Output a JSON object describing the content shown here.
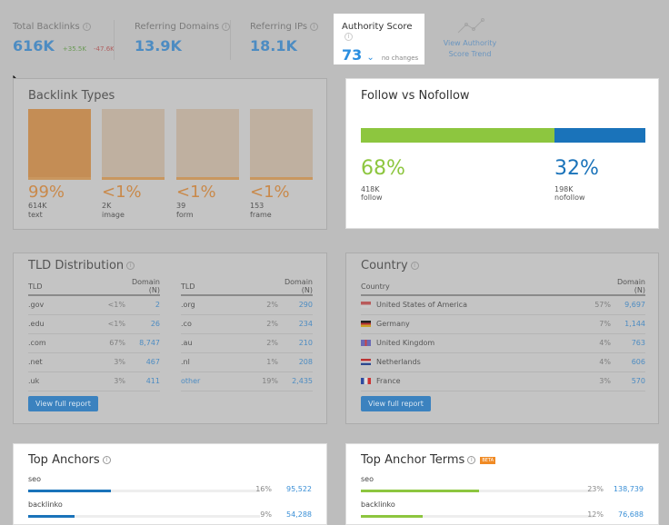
{
  "stats": {
    "total_backlinks": {
      "label": "Total Backlinks",
      "value": "616K",
      "up": "+35.5K",
      "down": "-47.6K"
    },
    "referring_domains": {
      "label": "Referring Domains",
      "value": "13.9K"
    },
    "referring_ips": {
      "label": "Referring IPs",
      "value": "18.1K"
    },
    "authority_score": {
      "label": "Authority Score",
      "value": "73",
      "change": "no changes"
    },
    "trend_link": "View Authority Score Trend"
  },
  "backlink_types": {
    "title": "Backlink Types",
    "items": [
      {
        "pct": "99%",
        "count": "614K",
        "type": "text"
      },
      {
        "pct": "<1%",
        "count": "2K",
        "type": "image"
      },
      {
        "pct": "<1%",
        "count": "39",
        "type": "form"
      },
      {
        "pct": "<1%",
        "count": "153",
        "type": "frame"
      }
    ]
  },
  "follow": {
    "title": "Follow vs Nofollow",
    "follow_pct": "68%",
    "follow_count": "418K",
    "follow_label": "follow",
    "nofollow_pct": "32%",
    "nofollow_count": "198K",
    "nofollow_label": "nofollow",
    "follow_fraction": 0.68,
    "colors": {
      "follow": "#8dc63f",
      "nofollow": "#1a73ba"
    }
  },
  "tld": {
    "title": "TLD Distribution",
    "col_tld": "TLD",
    "col_domain": "Domain (N)",
    "left": [
      {
        "tld": ".gov",
        "pct": "<1%",
        "n": "2"
      },
      {
        "tld": ".edu",
        "pct": "<1%",
        "n": "26"
      },
      {
        "tld": ".com",
        "pct": "67%",
        "n": "8,747"
      },
      {
        "tld": ".net",
        "pct": "3%",
        "n": "467"
      },
      {
        "tld": ".uk",
        "pct": "3%",
        "n": "411"
      }
    ],
    "right": [
      {
        "tld": ".org",
        "pct": "2%",
        "n": "290"
      },
      {
        "tld": ".co",
        "pct": "2%",
        "n": "234"
      },
      {
        "tld": ".au",
        "pct": "2%",
        "n": "210"
      },
      {
        "tld": ".nl",
        "pct": "1%",
        "n": "208"
      },
      {
        "tld": "other",
        "pct": "19%",
        "n": "2,435"
      }
    ],
    "button": "View full report"
  },
  "country": {
    "title": "Country",
    "col_country": "Country",
    "col_domain": "Domain (N)",
    "rows": [
      {
        "name": "United States of America",
        "pct": "57%",
        "n": "9,697"
      },
      {
        "name": "Germany",
        "pct": "7%",
        "n": "1,144"
      },
      {
        "name": "United Kingdom",
        "pct": "4%",
        "n": "763"
      },
      {
        "name": "Netherlands",
        "pct": "4%",
        "n": "606"
      },
      {
        "name": "France",
        "pct": "3%",
        "n": "570"
      }
    ],
    "button": "View full report"
  },
  "top_anchors": {
    "title": "Top Anchors",
    "rows": [
      {
        "anchor": "seo",
        "pct": "16%",
        "n": "95,522",
        "fraction": 0.16
      },
      {
        "anchor": "backlinko",
        "pct": "9%",
        "n": "54,288",
        "fraction": 0.09
      }
    ]
  },
  "top_anchor_terms": {
    "title": "Top Anchor Terms",
    "badge": "BETA",
    "rows": [
      {
        "anchor": "seo",
        "pct": "23%",
        "n": "138,739",
        "fraction": 0.23
      },
      {
        "anchor": "backlinko",
        "pct": "12%",
        "n": "76,688",
        "fraction": 0.12
      }
    ]
  }
}
